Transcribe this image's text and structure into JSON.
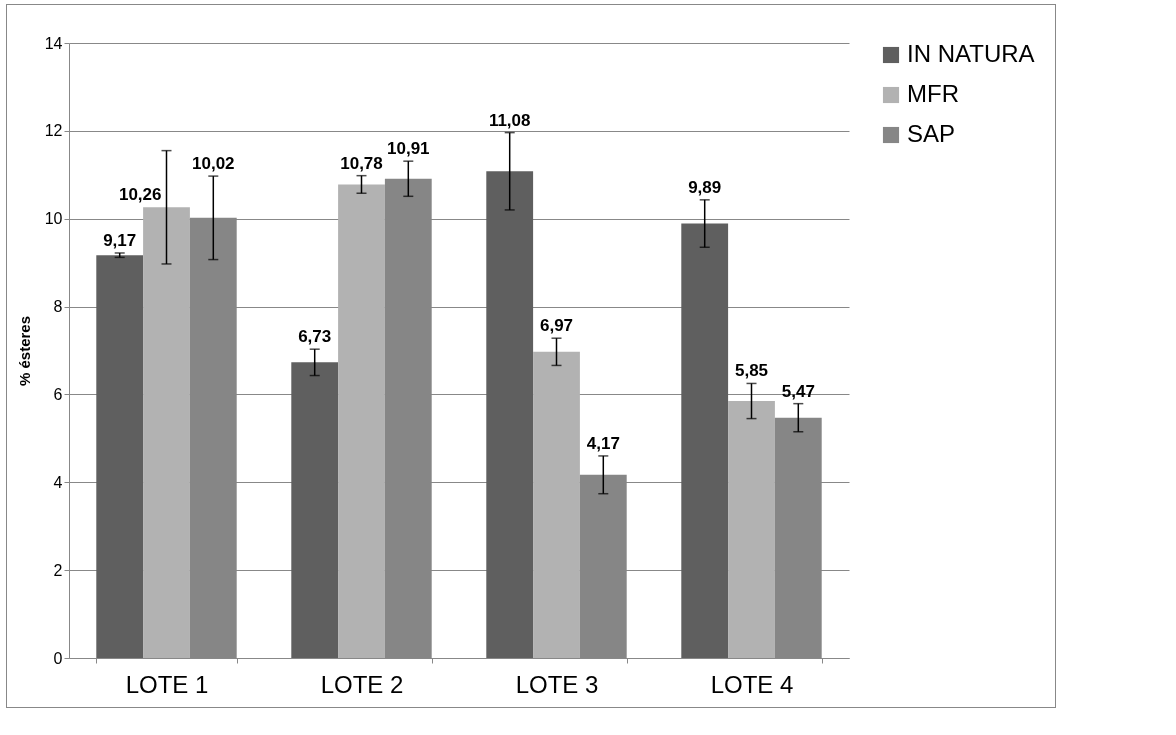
{
  "chart_data": {
    "type": "bar",
    "ylabel": "% ésteres",
    "categories": [
      "LOTE  1",
      "LOTE 2",
      "LOTE 3",
      "LOTE 4"
    ],
    "series": [
      {
        "name": "IN NATURA",
        "color": "#5f5f5f",
        "values": [
          9.17,
          6.73,
          11.08,
          9.89
        ],
        "value_labels": [
          "9,17",
          "6,73",
          "11,08",
          "9,89"
        ],
        "errors": [
          0.05,
          0.3,
          0.88,
          0.54
        ]
      },
      {
        "name": "MFR",
        "color": "#b2b2b2",
        "values": [
          10.26,
          10.78,
          6.97,
          5.85
        ],
        "value_labels": [
          "10,26",
          "10,78",
          "6,97",
          "5,85"
        ],
        "errors": [
          1.29,
          0.2,
          0.31,
          0.4
        ]
      },
      {
        "name": "SAP",
        "color": "#868686",
        "values": [
          10.02,
          10.91,
          4.17,
          5.47
        ],
        "value_labels": [
          "10,02",
          "10,91",
          "4,17",
          "5,47"
        ],
        "errors": [
          0.95,
          0.4,
          0.43,
          0.32
        ]
      }
    ],
    "ylim": [
      0,
      14
    ],
    "yticks": [
      0,
      2,
      4,
      6,
      8,
      10,
      12,
      14
    ],
    "grid": "y",
    "legend": "right"
  }
}
